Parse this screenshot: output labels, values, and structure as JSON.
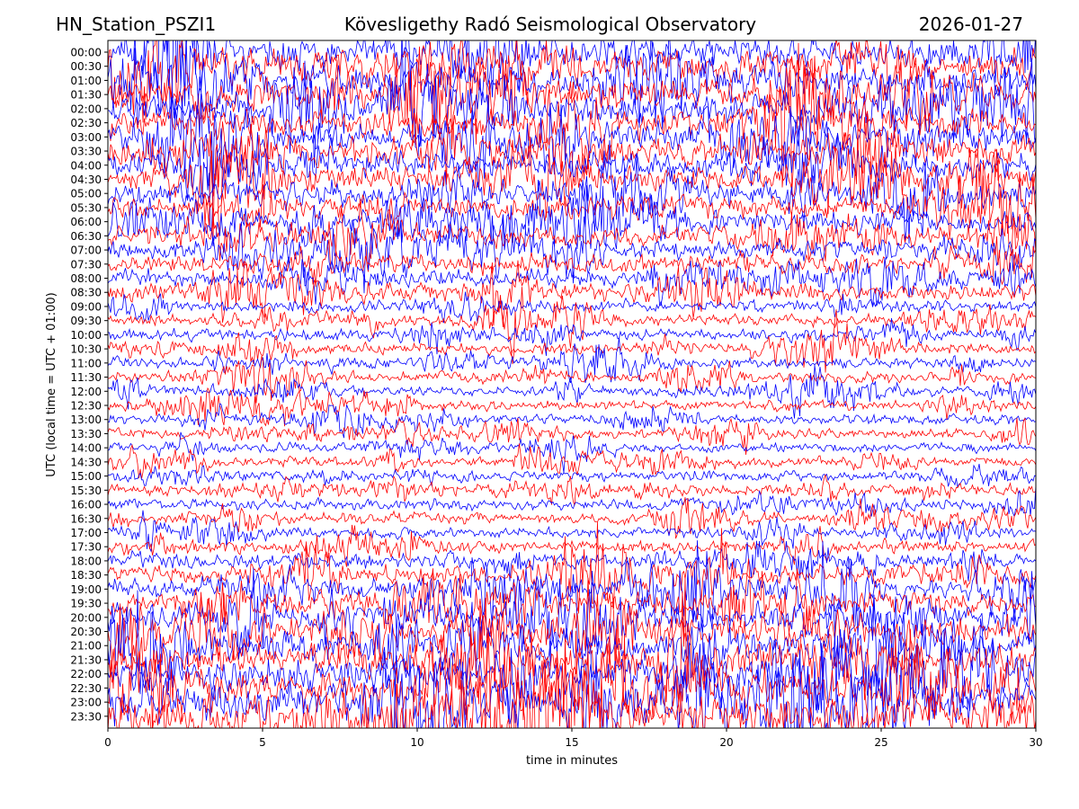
{
  "header": {
    "station": "HN_Station_PSZI1",
    "observatory": "Kövesligethy Radó Seismological Observatory",
    "date": "2026-01-27"
  },
  "chart_data": {
    "type": "line",
    "title": "Kövesligethy Radó Seismological Observatory",
    "xlabel": "time in minutes",
    "ylabel": "UTC (local time = UTC + 01:00)",
    "xlim": [
      0,
      30
    ],
    "x_ticks": [
      0,
      5,
      10,
      15,
      20,
      25,
      30
    ],
    "y_ticks": [
      "00:00",
      "00:30",
      "01:00",
      "01:30",
      "02:00",
      "02:30",
      "03:00",
      "03:30",
      "04:00",
      "04:30",
      "05:00",
      "05:30",
      "06:00",
      "06:30",
      "07:00",
      "07:30",
      "08:00",
      "08:30",
      "09:00",
      "09:30",
      "10:00",
      "10:30",
      "11:00",
      "11:30",
      "12:00",
      "12:30",
      "13:00",
      "13:30",
      "14:00",
      "14:30",
      "15:00",
      "15:30",
      "16:00",
      "16:30",
      "17:00",
      "17:30",
      "18:00",
      "18:30",
      "19:00",
      "19:30",
      "20:00",
      "20:30",
      "21:00",
      "21:30",
      "22:00",
      "22:30",
      "23:00",
      "23:30"
    ],
    "trace_colors": [
      "#0000ff",
      "#ff0000"
    ],
    "grid": false
  }
}
